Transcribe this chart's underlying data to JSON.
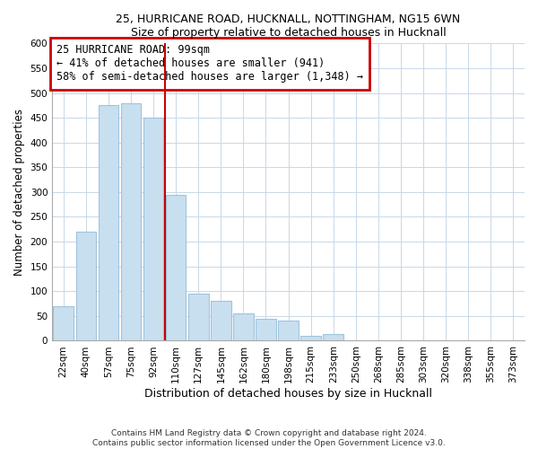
{
  "title1": "25, HURRICANE ROAD, HUCKNALL, NOTTINGHAM, NG15 6WN",
  "title2": "Size of property relative to detached houses in Hucknall",
  "xlabel": "Distribution of detached houses by size in Hucknall",
  "ylabel": "Number of detached properties",
  "bar_labels": [
    "22sqm",
    "40sqm",
    "57sqm",
    "75sqm",
    "92sqm",
    "110sqm",
    "127sqm",
    "145sqm",
    "162sqm",
    "180sqm",
    "198sqm",
    "215sqm",
    "233sqm",
    "250sqm",
    "268sqm",
    "285sqm",
    "303sqm",
    "320sqm",
    "338sqm",
    "355sqm",
    "373sqm"
  ],
  "bar_values": [
    70,
    220,
    475,
    480,
    450,
    295,
    95,
    80,
    55,
    45,
    40,
    10,
    13,
    0,
    0,
    0,
    0,
    0,
    0,
    0,
    0
  ],
  "bar_color": "#c8dff0",
  "bar_edge_color": "#a0c4dc",
  "property_line_x": 4.5,
  "property_line_color": "#cc0000",
  "annotation_text": "25 HURRICANE ROAD: 99sqm\n← 41% of detached houses are smaller (941)\n58% of semi-detached houses are larger (1,348) →",
  "annotation_box_color": "#ffffff",
  "annotation_box_edge_color": "#cc0000",
  "ylim": [
    0,
    600
  ],
  "yticks": [
    0,
    50,
    100,
    150,
    200,
    250,
    300,
    350,
    400,
    450,
    500,
    550,
    600
  ],
  "footer_line1": "Contains HM Land Registry data © Crown copyright and database right 2024.",
  "footer_line2": "Contains public sector information licensed under the Open Government Licence v3.0.",
  "fig_width": 6.0,
  "fig_height": 5.0
}
